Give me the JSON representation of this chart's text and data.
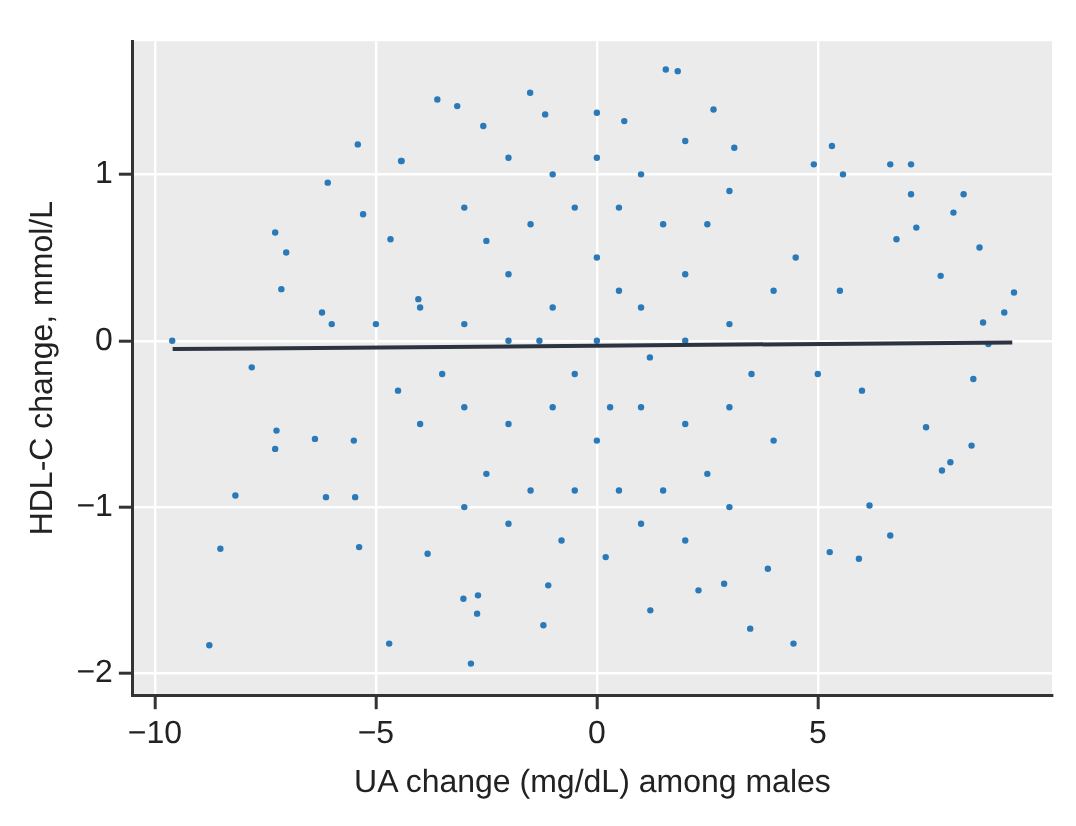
{
  "chart_data": {
    "type": "scatter",
    "xlabel": "UA change (mg/dL) among males",
    "ylabel": "HDL-C change, mmol/L",
    "xlim": [
      -10.5,
      10.3
    ],
    "ylim": [
      -2.13,
      1.8
    ],
    "xticks": [
      {
        "value": -10,
        "label": "−10"
      },
      {
        "value": -5,
        "label": "−5"
      },
      0,
      5
    ],
    "yticks": [
      {
        "value": -2,
        "label": "−2"
      },
      {
        "value": -1,
        "label": "−1"
      },
      0,
      1
    ],
    "grid": true,
    "legend": false,
    "series": [
      {
        "type": "scatter",
        "color": "#2a7ab9",
        "marker": "circle",
        "x": [
          1.56,
          1.83,
          -1.51,
          -3.61,
          -3.16,
          -5.41,
          -4.42,
          -6.09,
          -7.28,
          -7.14,
          -7.03,
          -9.61,
          -7.81,
          -7.25,
          -7.28,
          -8.18,
          -8.52,
          -8.77,
          -4.7,
          -2.85,
          -5.38,
          -5.47,
          -6.13,
          -6.38,
          -3.83,
          -3.02,
          -2.69,
          -2.71,
          -1.21,
          -1.1,
          1.21,
          2.3,
          2.88,
          3.47,
          4.45,
          3.87,
          5.27,
          5.93,
          6.64,
          6.17,
          7.81,
          8.0,
          8.48,
          7.45,
          8.52,
          8.86,
          9.44,
          9.22,
          8.74,
          8.66,
          8.3,
          8.07,
          7.78,
          7.11,
          6.64,
          7.11,
          7.23,
          6.78,
          5.57,
          5.32,
          4.91,
          3.11,
          2.64,
          0.62,
          0.0,
          -1.17,
          -2.57,
          -4.43,
          -4.67,
          -5.29,
          -4.04,
          -6.22,
          0,
          1,
          -1,
          1,
          -1,
          0,
          0,
          2,
          -2,
          2,
          -2,
          2,
          -2,
          0.5,
          -0.5,
          0.5,
          -0.5,
          3,
          -3,
          3,
          -3,
          1.5,
          -1.5,
          1.5,
          -1.5,
          3.5,
          -3.5,
          2.5,
          -2.5,
          2.5,
          -2.5,
          0.5,
          -0.5,
          1.2,
          -1.3,
          0.3,
          4,
          -4,
          4,
          -4,
          1,
          -1,
          0,
          1,
          -0.8,
          0.2,
          4.5,
          -4.5,
          5,
          -5,
          3,
          -3,
          3,
          -3,
          5.5,
          -5.5,
          6,
          -6,
          2,
          -2,
          2,
          -2
        ],
        "values": [
          1.63,
          1.62,
          1.49,
          1.45,
          1.41,
          1.18,
          1.08,
          0.95,
          0.65,
          0.31,
          0.53,
          0.0,
          -0.16,
          -0.54,
          -0.65,
          -0.93,
          -1.25,
          -1.83,
          -1.82,
          -1.94,
          -1.24,
          -0.94,
          -0.94,
          -0.59,
          -1.28,
          -1.55,
          -1.53,
          -1.64,
          -1.71,
          -1.47,
          -1.62,
          -1.5,
          -1.46,
          -1.73,
          -1.82,
          -1.37,
          -1.27,
          -1.31,
          -1.17,
          -0.99,
          -0.78,
          -0.73,
          -0.63,
          -0.52,
          -0.23,
          -0.02,
          0.29,
          0.17,
          0.11,
          0.56,
          0.88,
          0.77,
          0.39,
          1.06,
          1.06,
          0.88,
          0.68,
          0.61,
          1.0,
          1.17,
          1.06,
          1.16,
          1.39,
          1.32,
          1.37,
          1.36,
          1.29,
          1.08,
          0.61,
          0.76,
          0.25,
          0.17,
          0,
          0.2,
          0.2,
          -0.4,
          -0.4,
          0.5,
          -0.6,
          0,
          0,
          -0.5,
          -0.5,
          0.4,
          0.4,
          -0.9,
          -0.9,
          0.8,
          0.8,
          0.1,
          0.1,
          -0.4,
          -0.4,
          0.7,
          0.7,
          -0.9,
          -0.9,
          -0.2,
          -0.2,
          0.7,
          0.6,
          -0.8,
          -0.8,
          0.3,
          -0.2,
          -0.1,
          0,
          -0.4,
          0.3,
          0.2,
          -0.6,
          -0.5,
          1,
          1,
          1.1,
          -1.1,
          -1.2,
          -1.3,
          0.5,
          -0.3,
          -0.2,
          0.1,
          0.9,
          0.8,
          -1,
          -1,
          0.3,
          -0.6,
          -0.3,
          0.1,
          1.2,
          1.1,
          -1.2,
          -1.1
        ]
      },
      {
        "type": "line",
        "color": "#2b3440",
        "marker": "none",
        "line_style": "solid",
        "x": [
          -9.6,
          9.4
        ],
        "values": [
          -0.05,
          -0.01
        ]
      }
    ]
  }
}
